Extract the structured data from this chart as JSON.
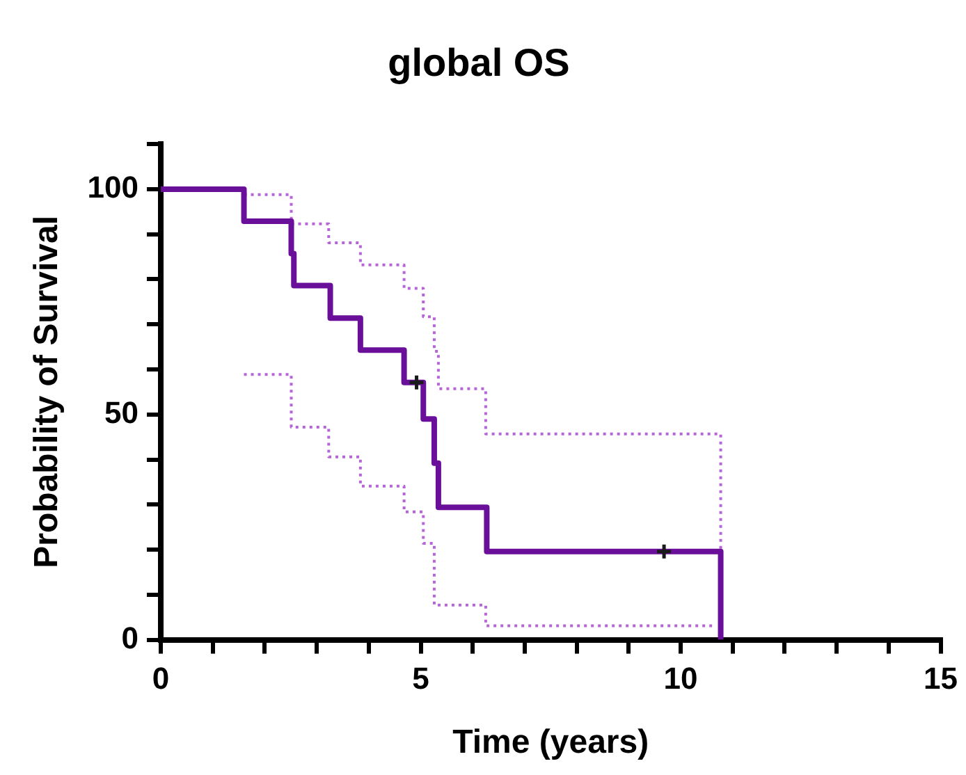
{
  "chart_data": {
    "type": "step",
    "title": "global OS",
    "xlabel": "Time (years)",
    "ylabel": "Probability of Survival",
    "xlim": [
      0,
      15
    ],
    "ylim": [
      0,
      110
    ],
    "xticks": [
      0,
      {
        "value": 1,
        "label": null
      },
      {
        "value": 2,
        "label": null
      },
      {
        "value": 3,
        "label": null
      },
      {
        "value": 4,
        "label": null
      },
      5,
      {
        "value": 6,
        "label": null
      },
      {
        "value": 7,
        "label": null
      },
      {
        "value": 8,
        "label": null
      },
      {
        "value": 9,
        "label": null
      },
      10,
      {
        "value": 11,
        "label": null
      },
      {
        "value": 12,
        "label": null
      },
      {
        "value": 13,
        "label": null
      },
      {
        "value": 14,
        "label": null
      },
      15
    ],
    "yticks": [
      0,
      {
        "value": 10,
        "label": null
      },
      {
        "value": 20,
        "label": null
      },
      {
        "value": 30,
        "label": null
      },
      {
        "value": 40,
        "label": null
      },
      50,
      {
        "value": 60,
        "label": null
      },
      {
        "value": 70,
        "label": null
      },
      {
        "value": 80,
        "label": null
      },
      {
        "value": 90,
        "label": null
      },
      100,
      {
        "value": 110,
        "label": null
      }
    ],
    "grid": false,
    "legend": false,
    "series": [
      {
        "type": "step",
        "color": "#6a0f9a",
        "line_style": "solid",
        "x": [
          0,
          1.6,
          2.51,
          2.56,
          3.26,
          3.84,
          4.68,
          5.05,
          5.26,
          5.34,
          6.27,
          10.77
        ],
        "values": [
          100,
          92.9,
          85.7,
          78.6,
          71.4,
          64.3,
          57.1,
          49,
          39.2,
          29.4,
          19.6,
          0
        ]
      },
      {
        "type": "step",
        "color": "#b565d8",
        "line_style": "dotted",
        "x": [
          1.6,
          2.51,
          3.23,
          3.84,
          4.68,
          5.05,
          5.26,
          5.34,
          6.25,
          10.77
        ],
        "values": [
          98.8,
          92.3,
          88.1,
          83.2,
          78,
          71.7,
          64,
          55.7,
          45.7,
          19.6
        ]
      },
      {
        "type": "step",
        "color": "#b565d8",
        "line_style": "dotted",
        "x": [
          1.6,
          2.51,
          3.23,
          3.84,
          4.68,
          5.05,
          5.26,
          6.25,
          10.66
        ],
        "values": [
          58.9,
          47.2,
          40.6,
          34.1,
          28.4,
          21.4,
          7.7,
          3.1,
          3.1
        ]
      },
      {
        "type": "scatter",
        "color": "#1a1a1a",
        "marker": "cross",
        "x": [
          4.92,
          9.68
        ],
        "values": [
          57.1,
          19.6
        ]
      }
    ]
  }
}
